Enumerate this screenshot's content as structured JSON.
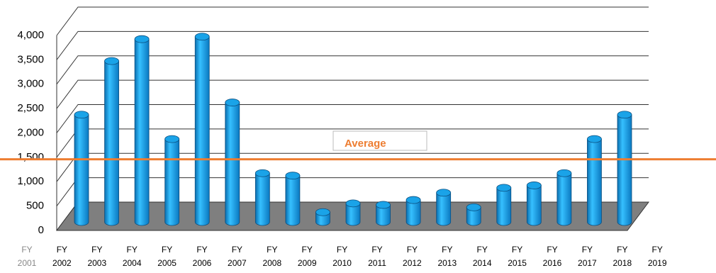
{
  "chart_data": {
    "type": "bar3d",
    "categories": [
      "FY 2001",
      "FY 2002",
      "FY 2003",
      "FY 2004",
      "FY 2005",
      "FY 2006",
      "FY 2007",
      "FY 2008",
      "FY 2009",
      "FY 2010",
      "FY 2011",
      "FY 2012",
      "FY 2013",
      "FY 2014",
      "FY 2015",
      "FY 2016",
      "FY 2017",
      "FY 2018",
      "FY 2019"
    ],
    "values": [
      2200,
      3300,
      3750,
      1700,
      3800,
      2450,
      1000,
      950,
      200,
      380,
      350,
      450,
      600,
      300,
      700,
      750,
      1000,
      1700,
      2200
    ],
    "color": "#1aa3e8",
    "ylim": [
      0,
      4000
    ],
    "yticks": [
      0,
      500,
      {
        "value": 1000,
        "label": "1,000"
      },
      {
        "value": 1500,
        "label": "1,500"
      },
      {
        "value": 2000,
        "label": "2,000"
      },
      {
        "value": 2500,
        "label": "2,500"
      },
      {
        "value": 3000,
        "label": "3,000"
      },
      {
        "value": 3500,
        "label": "3,500"
      },
      {
        "value": 4000,
        "label": "4,000"
      }
    ],
    "grid": true,
    "average": {
      "label": "Average",
      "value": 1460,
      "color": "#ed7d31"
    }
  }
}
